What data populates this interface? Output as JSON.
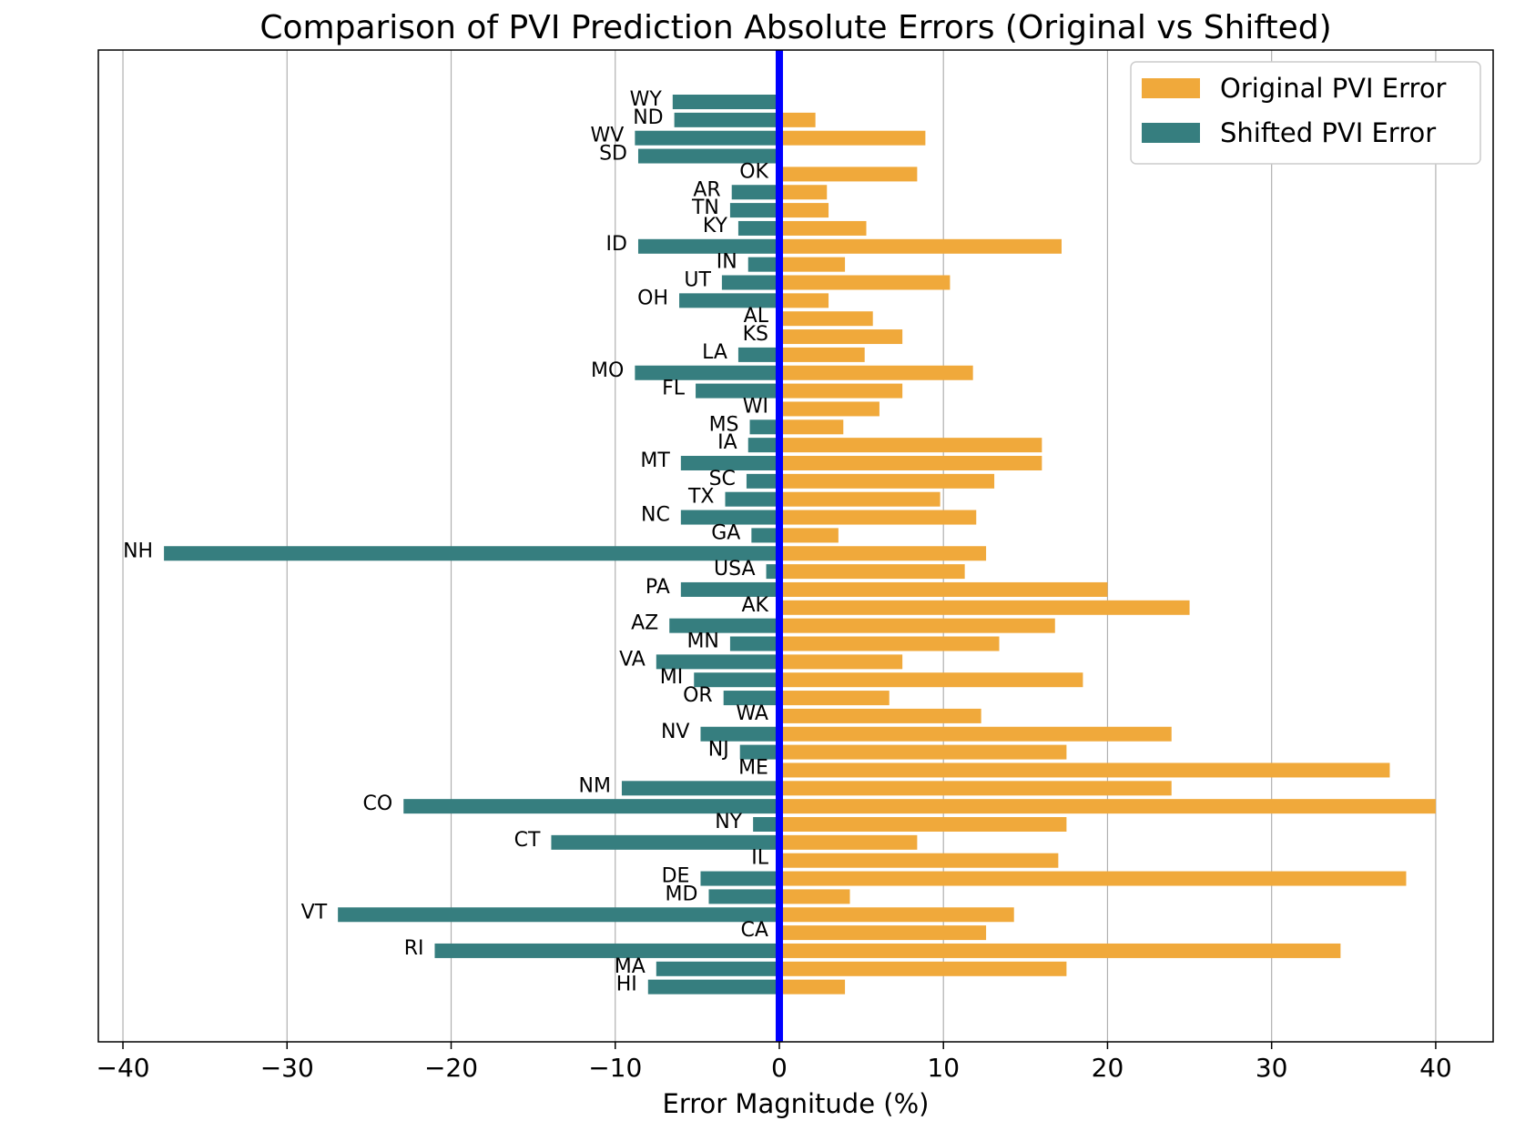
{
  "chart_data": {
    "type": "bar",
    "orientation": "horizontal",
    "title": "Comparison of PVI Prediction Absolute Errors (Original vs Shifted)",
    "xlabel": "Error Magnitude (%)",
    "ylabel": "",
    "xlim": [
      -41.5,
      43.5
    ],
    "xticks": [
      -40,
      -30,
      -20,
      -10,
      0,
      10,
      20,
      30,
      40
    ],
    "xtick_labels": [
      "−40",
      "−30",
      "−20",
      "−10",
      "0",
      "10",
      "20",
      "30",
      "40"
    ],
    "grid": "vertical",
    "legend_position": "top-right",
    "zero_line_color": "#0000ff",
    "categories": [
      "WY",
      "ND",
      "WV",
      "SD",
      "OK",
      "AR",
      "TN",
      "KY",
      "ID",
      "IN",
      "UT",
      "OH",
      "AL",
      "KS",
      "LA",
      "MO",
      "FL",
      "WI",
      "MS",
      "IA",
      "MT",
      "SC",
      "TX",
      "NC",
      "GA",
      "NH",
      "USA",
      "PA",
      "AK",
      "AZ",
      "MN",
      "VA",
      "MI",
      "OR",
      "WA",
      "NV",
      "NJ",
      "ME",
      "NM",
      "CO",
      "NY",
      "CT",
      "IL",
      "DE",
      "MD",
      "VT",
      "CA",
      "RI",
      "MA",
      "HI"
    ],
    "series": [
      {
        "name": "Original PVI Error",
        "color": "#f0a93b",
        "values": [
          0,
          2.2,
          8.9,
          0,
          8.4,
          2.9,
          3.0,
          5.3,
          17.2,
          4.0,
          10.4,
          3.0,
          5.7,
          7.5,
          5.2,
          11.8,
          7.5,
          6.1,
          3.9,
          16.0,
          16.0,
          13.1,
          9.8,
          12.0,
          3.6,
          12.6,
          11.3,
          20.0,
          25.0,
          16.8,
          13.4,
          7.5,
          18.5,
          6.7,
          12.3,
          23.9,
          17.5,
          37.2,
          23.9,
          40.0,
          17.5,
          8.4,
          17.0,
          38.2,
          4.3,
          14.3,
          12.6,
          34.2,
          17.5,
          4.0
        ]
      },
      {
        "name": "Shifted PVI Error",
        "color": "#367e7f",
        "values": [
          -6.5,
          -6.4,
          -8.8,
          -8.6,
          0,
          -2.9,
          -3.0,
          -2.5,
          -8.6,
          -1.9,
          -3.5,
          -6.1,
          0,
          0,
          -2.5,
          -8.8,
          -5.1,
          0,
          -1.8,
          -1.9,
          -6.0,
          -2.0,
          -3.3,
          -6.0,
          -1.7,
          -37.5,
          -0.8,
          -6.0,
          0,
          -6.7,
          -3.0,
          -7.5,
          -5.2,
          -3.4,
          0,
          -4.8,
          -2.4,
          0,
          -9.6,
          -22.9,
          -1.6,
          -13.9,
          0,
          -4.8,
          -4.3,
          -26.9,
          0,
          -21.0,
          -7.5,
          -8.0
        ]
      }
    ]
  }
}
